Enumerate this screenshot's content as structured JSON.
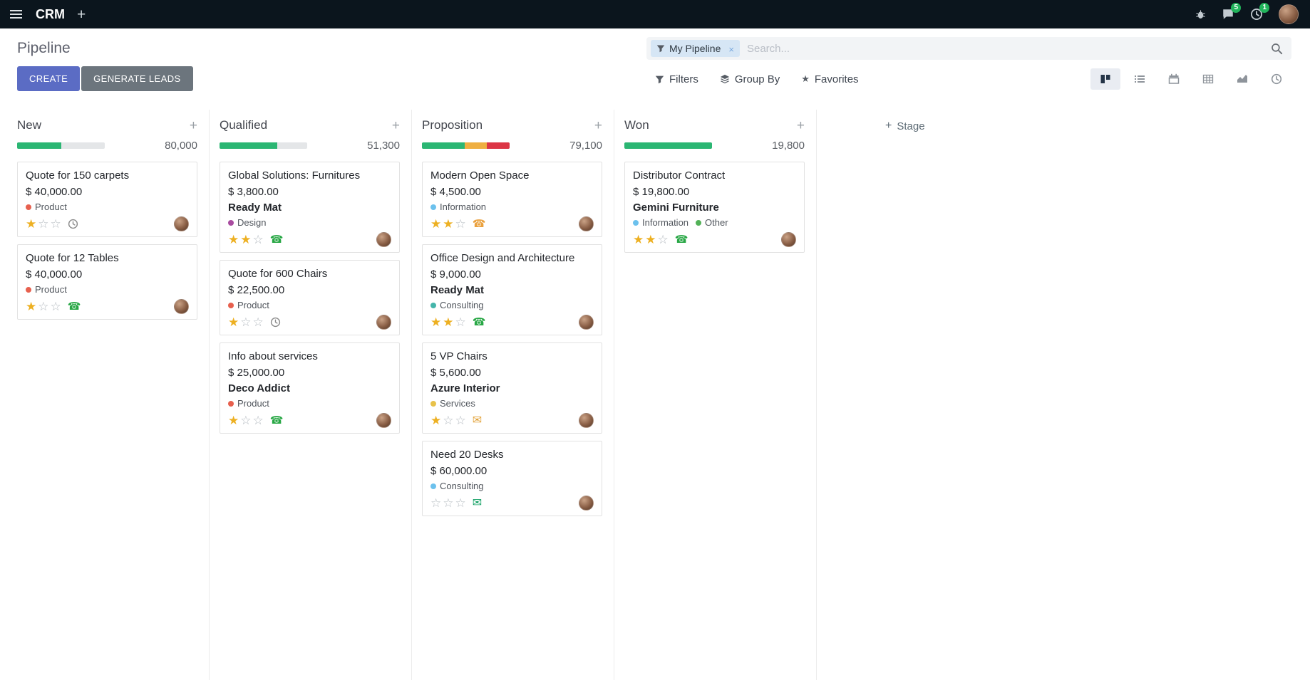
{
  "topbar": {
    "app_name": "CRM",
    "messages_badge": "5",
    "activities_badge": "1"
  },
  "control_panel": {
    "title": "Pipeline",
    "create_label": "CREATE",
    "generate_leads_label": "GENERATE LEADS",
    "filters_label": "Filters",
    "group_by_label": "Group By",
    "favorites_label": "Favorites",
    "search": {
      "facet_label": "My Pipeline",
      "placeholder": "Search..."
    },
    "view_switcher": [
      {
        "name": "kanban",
        "active": true
      },
      {
        "name": "list",
        "active": false
      },
      {
        "name": "calendar",
        "active": false
      },
      {
        "name": "pivot",
        "active": false
      },
      {
        "name": "graph",
        "active": false
      },
      {
        "name": "activity",
        "active": false
      }
    ]
  },
  "kanban": {
    "add_stage_label": "Stage",
    "columns": [
      {
        "name": "New",
        "total": "80,000",
        "progress": [
          {
            "color": "#2bb673",
            "pct": 50
          }
        ],
        "cards": [
          {
            "title": "Quote for 150 carpets",
            "amount": "$ 40,000.00",
            "partner": "",
            "tags": [
              {
                "label": "Product",
                "color": "#e7604e"
              }
            ],
            "stars": 1,
            "activity": {
              "icon": "clock",
              "color": "#8b8b8b"
            }
          },
          {
            "title": "Quote for 12 Tables",
            "amount": "$ 40,000.00",
            "partner": "",
            "tags": [
              {
                "label": "Product",
                "color": "#e7604e"
              }
            ],
            "stars": 1,
            "activity": {
              "icon": "phone",
              "color": "#28a745"
            }
          }
        ]
      },
      {
        "name": "Qualified",
        "total": "51,300",
        "progress": [
          {
            "color": "#2bb673",
            "pct": 66
          }
        ],
        "cards": [
          {
            "title": "Global Solutions: Furnitures",
            "amount": "$ 3,800.00",
            "partner": "Ready Mat",
            "tags": [
              {
                "label": "Design",
                "color": "#a94ca0"
              }
            ],
            "stars": 2,
            "activity": {
              "icon": "phone",
              "color": "#28a745"
            }
          },
          {
            "title": "Quote for 600 Chairs",
            "amount": "$ 22,500.00",
            "partner": "",
            "tags": [
              {
                "label": "Product",
                "color": "#e7604e"
              }
            ],
            "stars": 1,
            "activity": {
              "icon": "clock",
              "color": "#8b8b8b"
            }
          },
          {
            "title": "Info about services",
            "amount": "$ 25,000.00",
            "partner": "Deco Addict",
            "tags": [
              {
                "label": "Product",
                "color": "#e7604e"
              }
            ],
            "stars": 1,
            "activity": {
              "icon": "phone",
              "color": "#28a745"
            }
          }
        ]
      },
      {
        "name": "Proposition",
        "total": "79,100",
        "progress": [
          {
            "color": "#2bb673",
            "pct": 49
          },
          {
            "color": "#efaf41",
            "pct": 25
          },
          {
            "color": "#dc3545",
            "pct": 26
          }
        ],
        "cards": [
          {
            "title": "Modern Open Space",
            "amount": "$ 4,500.00",
            "partner": "",
            "tags": [
              {
                "label": "Information",
                "color": "#6cc1ed"
              }
            ],
            "stars": 2,
            "activity": {
              "icon": "phone",
              "color": "#eaa13e"
            }
          },
          {
            "title": "Office Design and Architecture",
            "amount": "$ 9,000.00",
            "partner": "Ready Mat",
            "tags": [
              {
                "label": "Consulting",
                "color": "#45b5aa"
              }
            ],
            "stars": 2,
            "activity": {
              "icon": "phone",
              "color": "#28a745"
            }
          },
          {
            "title": "5 VP Chairs",
            "amount": "$ 5,600.00",
            "partner": "Azure Interior",
            "tags": [
              {
                "label": "Services",
                "color": "#e8c24a"
              }
            ],
            "stars": 1,
            "activity": {
              "icon": "envelope",
              "color": "#e2a33b"
            }
          },
          {
            "title": "Need 20 Desks",
            "amount": "$ 60,000.00",
            "partner": "",
            "tags": [
              {
                "label": "Consulting",
                "color": "#6cc1ed"
              }
            ],
            "stars": 0,
            "activity": {
              "icon": "envelope",
              "color": "#17a267"
            }
          }
        ]
      },
      {
        "name": "Won",
        "total": "19,800",
        "progress": [
          {
            "color": "#2bb673",
            "pct": 100
          }
        ],
        "cards": [
          {
            "title": "Distributor Contract",
            "amount": "$ 19,800.00",
            "partner": "Gemini Furniture",
            "tags": [
              {
                "label": "Information",
                "color": "#6cc1ed"
              },
              {
                "label": "Other",
                "color": "#52b157"
              }
            ],
            "stars": 2,
            "activity": {
              "icon": "phone",
              "color": "#28a745"
            }
          }
        ]
      }
    ]
  }
}
